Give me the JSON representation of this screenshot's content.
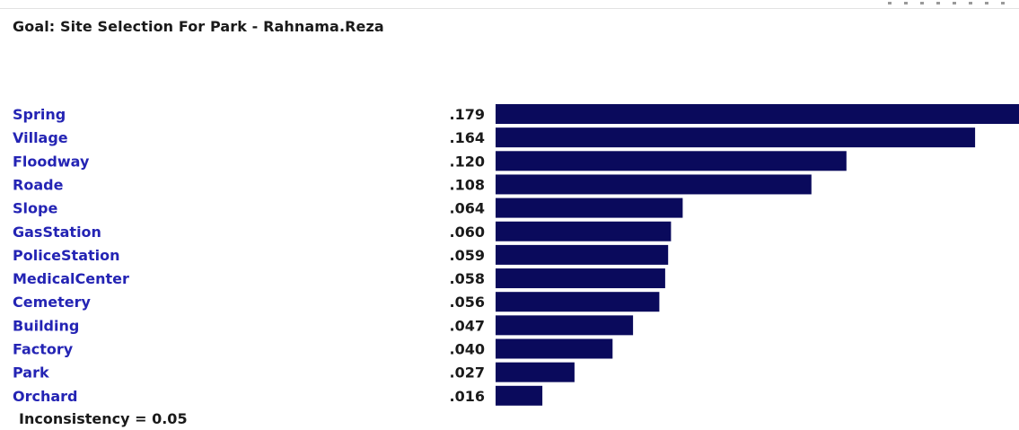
{
  "title": "Goal: Site Selection For Park - Rahnama.Reza",
  "inconsistency_label": "Inconsistency = 0.05",
  "colors": {
    "bar": "#0a0a5c",
    "label": "#2424b4",
    "value": "#1a1a1a",
    "title": "#1a1a1a"
  },
  "chart_data": {
    "type": "bar",
    "orientation": "horizontal",
    "categories": [
      "Spring",
      "Village",
      "Floodway",
      "Roade",
      "Slope",
      "GasStation",
      "PoliceStation",
      "MedicalCenter",
      "Cemetery",
      "Building",
      "Factory",
      "Park",
      "Orchard"
    ],
    "values": [
      0.179,
      0.164,
      0.12,
      0.108,
      0.064,
      0.06,
      0.059,
      0.058,
      0.056,
      0.047,
      0.04,
      0.027,
      0.016
    ],
    "value_labels": [
      ".179",
      ".164",
      ".120",
      ".108",
      ".064",
      ".060",
      ".059",
      ".058",
      ".056",
      ".047",
      ".040",
      ".027",
      ".016"
    ],
    "title": "Goal: Site Selection For Park - Rahnama.Reza",
    "xlabel": "",
    "ylabel": "",
    "xlim": [
      0,
      0.179
    ],
    "grid": false,
    "legend": "none"
  }
}
